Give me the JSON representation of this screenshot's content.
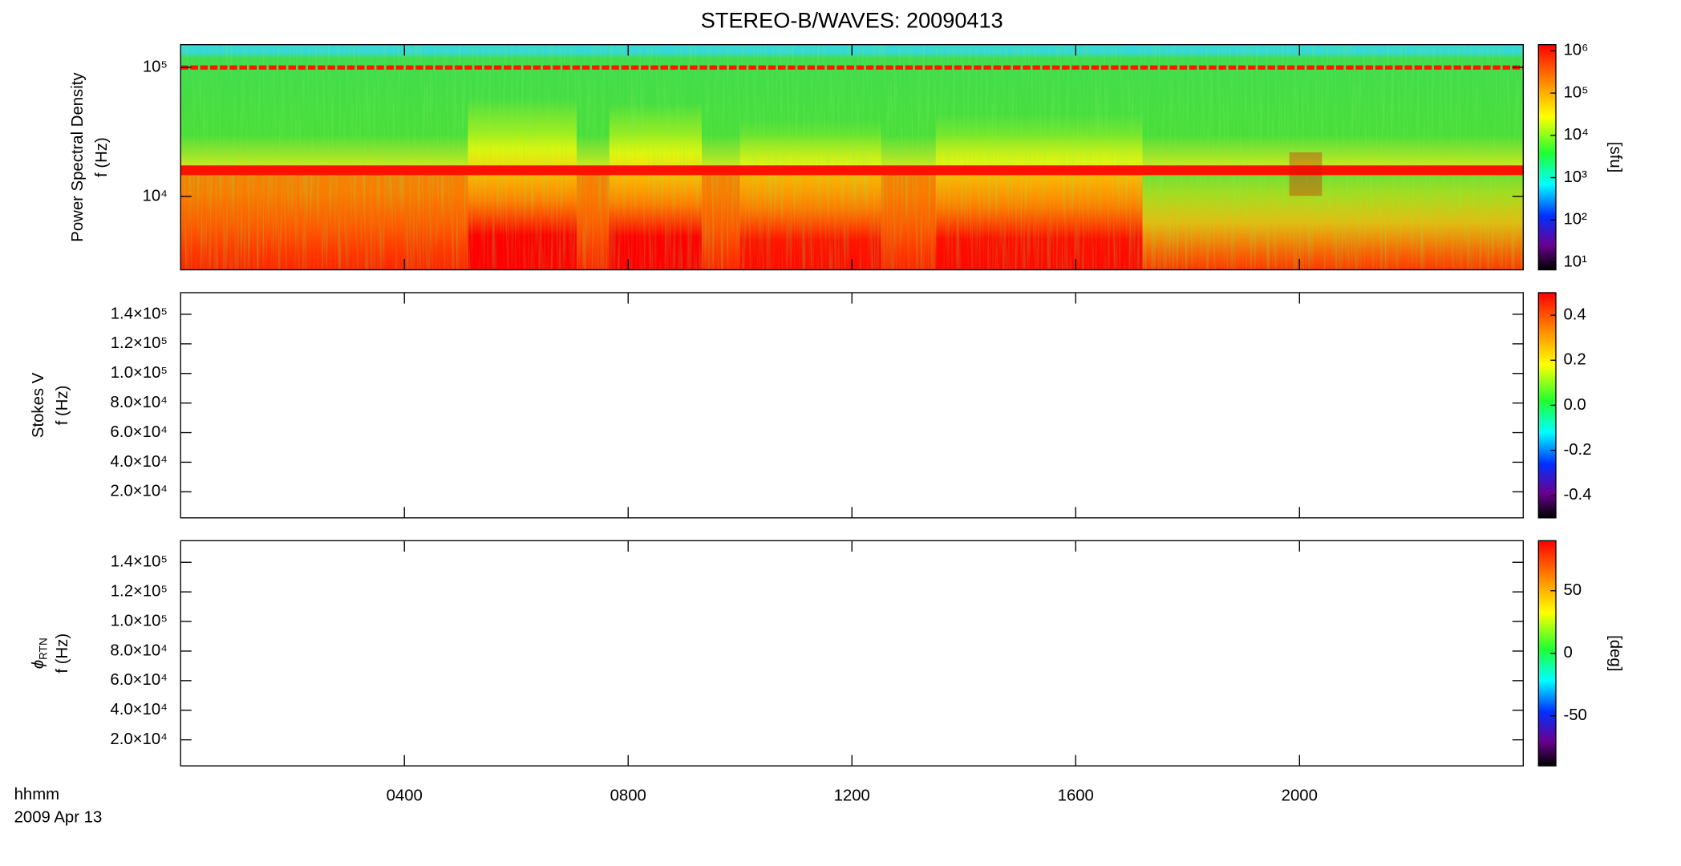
{
  "chart_data": {
    "type": "heatmap",
    "title": "STEREO-B/WAVES: 20090413",
    "x_labels": [
      "hhmm",
      "2009 Apr 13"
    ],
    "xlim": [
      0,
      24
    ],
    "xticks": [
      {
        "value": 4,
        "label": "0400"
      },
      {
        "value": 8,
        "label": "0800"
      },
      {
        "value": 12,
        "label": "1200"
      },
      {
        "value": 16,
        "label": "1600"
      },
      {
        "value": 20,
        "label": "2000"
      }
    ],
    "panels": [
      {
        "ylabel": [
          "Power Spectral Density",
          "f (Hz)"
        ],
        "ylog": true,
        "ylim": [
          2700,
          150000
        ],
        "yticks": [
          {
            "value": 10000,
            "label": "10⁴"
          },
          {
            "value": 100000,
            "label": "10⁵"
          }
        ],
        "colorbar": {
          "log": true,
          "lim": [
            6.6,
            1400000
          ],
          "ticks": [
            {
              "value": 10,
              "label": "10¹"
            },
            {
              "value": 100,
              "label": "10²"
            },
            {
              "value": 1000,
              "label": "10³"
            },
            {
              "value": 10000,
              "label": "10⁴"
            },
            {
              "value": 100000,
              "label": "10⁵"
            },
            {
              "value": 1000000,
              "label": "10⁶"
            }
          ],
          "label": "[sfu]"
        }
      },
      {
        "ylabel": [
          "Stokes V",
          "f (Hz)"
        ],
        "ylog": false,
        "ylim": [
          2400,
          154600
        ],
        "yticks": [
          {
            "value": 20000,
            "label": "2.0×10⁴"
          },
          {
            "value": 40000,
            "label": "4.0×10⁴"
          },
          {
            "value": 60000,
            "label": "6.0×10⁴"
          },
          {
            "value": 80000,
            "label": "8.0×10⁴"
          },
          {
            "value": 100000,
            "label": "1.0×10⁵"
          },
          {
            "value": 120000,
            "label": "1.2×10⁵"
          },
          {
            "value": 140000,
            "label": "1.4×10⁵"
          }
        ],
        "colorbar": {
          "log": false,
          "lim": [
            -0.5,
            0.5
          ],
          "ticks": [
            -0.4,
            -0.2,
            {
              "value": 0,
              "label": "0.0"
            },
            0.2,
            0.4
          ]
        }
      },
      {
        "ylabel": [
          {
            "symbol": "ϕ",
            "sub": "RTN"
          },
          "f (Hz)"
        ],
        "ylog": false,
        "ylim": [
          2400,
          154600
        ],
        "yticks": [
          {
            "value": 20000,
            "label": "2.0×10⁴"
          },
          {
            "value": 40000,
            "label": "4.0×10⁴"
          },
          {
            "value": 60000,
            "label": "6.0×10⁴"
          },
          {
            "value": 80000,
            "label": "8.0×10⁴"
          },
          {
            "value": 100000,
            "label": "1.0×10⁵"
          },
          {
            "value": 120000,
            "label": "1.2×10⁵"
          },
          {
            "value": 140000,
            "label": "1.4×10⁵"
          }
        ],
        "colorbar": {
          "log": false,
          "lim": [
            -90,
            90
          ],
          "ticks": [
            -50,
            0,
            50
          ],
          "label": "[deg]"
        }
      }
    ]
  }
}
